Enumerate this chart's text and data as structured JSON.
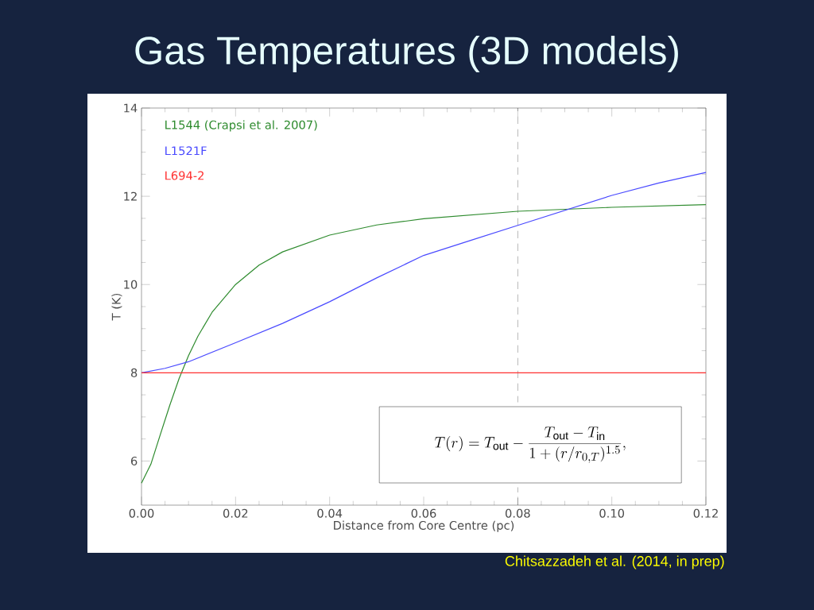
{
  "chart_data": {
    "type": "line",
    "title": "Gas Temperatures (3D models)",
    "xlabel": "Distance from Core Centre (pc)",
    "ylabel": "T (K)",
    "xlim": [
      0,
      0.12
    ],
    "ylim": [
      5,
      14
    ],
    "xticks": [
      {
        "value": 0,
        "label": "0.00"
      },
      {
        "value": 0.02,
        "label": "0.02"
      },
      {
        "value": 0.04,
        "label": "0.04"
      },
      {
        "value": 0.06,
        "label": "0.06"
      },
      {
        "value": 0.08,
        "label": "0.08"
      },
      {
        "value": 0.1,
        "label": "0.10"
      },
      {
        "value": 0.12,
        "label": "0.12"
      }
    ],
    "yticks": [
      6,
      8,
      10,
      12,
      14
    ],
    "legend": "top left",
    "series": [
      {
        "name": "L1544 (Crapsi et al. 2007)",
        "color": "#2e8b2e",
        "x": [
          0,
          0.002,
          0.004,
          0.006,
          0.008,
          0.01,
          0.012,
          0.015,
          0.02,
          0.025,
          0.03,
          0.04,
          0.05,
          0.06,
          0.08,
          0.1,
          0.12
        ],
        "values": [
          5.5,
          5.93,
          6.6,
          7.26,
          7.87,
          8.39,
          8.83,
          9.37,
          10.0,
          10.44,
          10.74,
          11.12,
          11.35,
          11.49,
          11.66,
          11.75,
          11.81
        ]
      },
      {
        "name": "L1521F",
        "color": "#4a4aff",
        "x": [
          0,
          0.005,
          0.01,
          0.02,
          0.03,
          0.04,
          0.05,
          0.06,
          0.07,
          0.08,
          0.09,
          0.1,
          0.11,
          0.12
        ],
        "values": [
          8.0,
          8.1,
          8.25,
          8.68,
          9.12,
          9.61,
          10.15,
          10.66,
          11.0,
          11.34,
          11.68,
          12.02,
          12.3,
          12.54
        ]
      },
      {
        "name": "L694-2",
        "color": "#ff3030",
        "x": [
          0,
          0.12
        ],
        "values": [
          8,
          8
        ]
      }
    ],
    "ref_lines": [
      {
        "axis": "x",
        "value": 0.08,
        "color": "#000000",
        "line_style": "dashed"
      }
    ],
    "annotations": [
      "T(r) = T_{\\mathrm{out}} - \\frac{T_{\\mathrm{out}} - T_{\\mathrm{in}}}{1 + (r/r_{0,T})^{1.5}},",
      "Chitsazzadeh et al. (2014, in prep)"
    ]
  }
}
